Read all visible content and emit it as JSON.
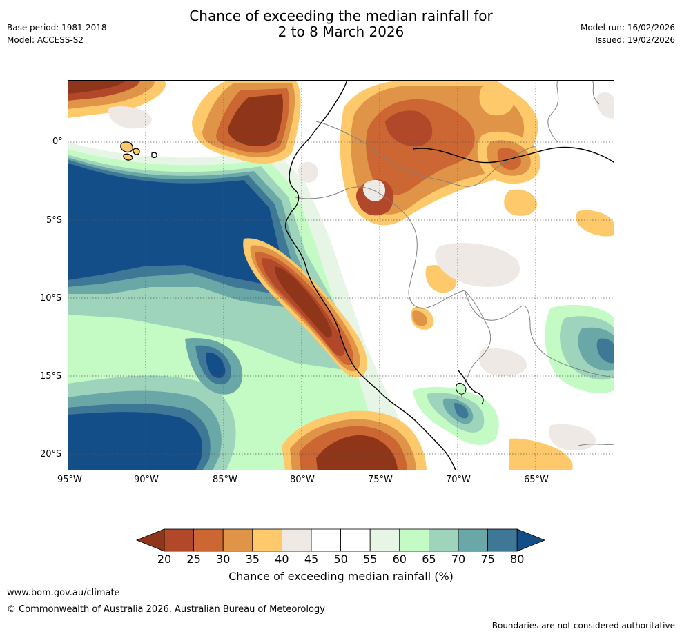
{
  "header": {
    "title_line1": "Chance of exceeding the median rainfall for",
    "title_line2": "2 to 8 March 2026",
    "base_period": "Base period: 1981-2018",
    "model": "Model: ACCESS-S2",
    "model_run": "Model run: 16/02/2026",
    "issued": "Issued: 19/02/2026"
  },
  "map": {
    "lon_labels": [
      "95°W",
      "90°W",
      "85°W",
      "80°W",
      "75°W",
      "70°W",
      "65°W"
    ],
    "lat_labels": [
      "0°",
      "5°S",
      "10°S",
      "15°S",
      "20°S"
    ],
    "lon_range": [
      -95,
      -60
    ],
    "lat_range": [
      -21,
      4
    ]
  },
  "legend": {
    "ticks": [
      "20",
      "25",
      "30",
      "35",
      "40",
      "45",
      "50",
      "55",
      "60",
      "65",
      "70",
      "75",
      "80"
    ],
    "label": "Chance of exceeding median rainfall (%)",
    "colors": [
      "#8f3519",
      "#b1482a",
      "#cc6632",
      "#e09447",
      "#fdc96a",
      "#efe9e6",
      "#ffffff",
      "#ffffff",
      "#e6f5e6",
      "#c4fbc5",
      "#9dd4bb",
      "#6aa8a7",
      "#3f7897",
      "#144e89"
    ]
  },
  "footer": {
    "url": "www.bom.gov.au/climate",
    "copyright": "© Commonwealth of Australia 2026, Australian Bureau of Meteorology",
    "disclaimer": "Boundaries are not considered authoritative"
  }
}
